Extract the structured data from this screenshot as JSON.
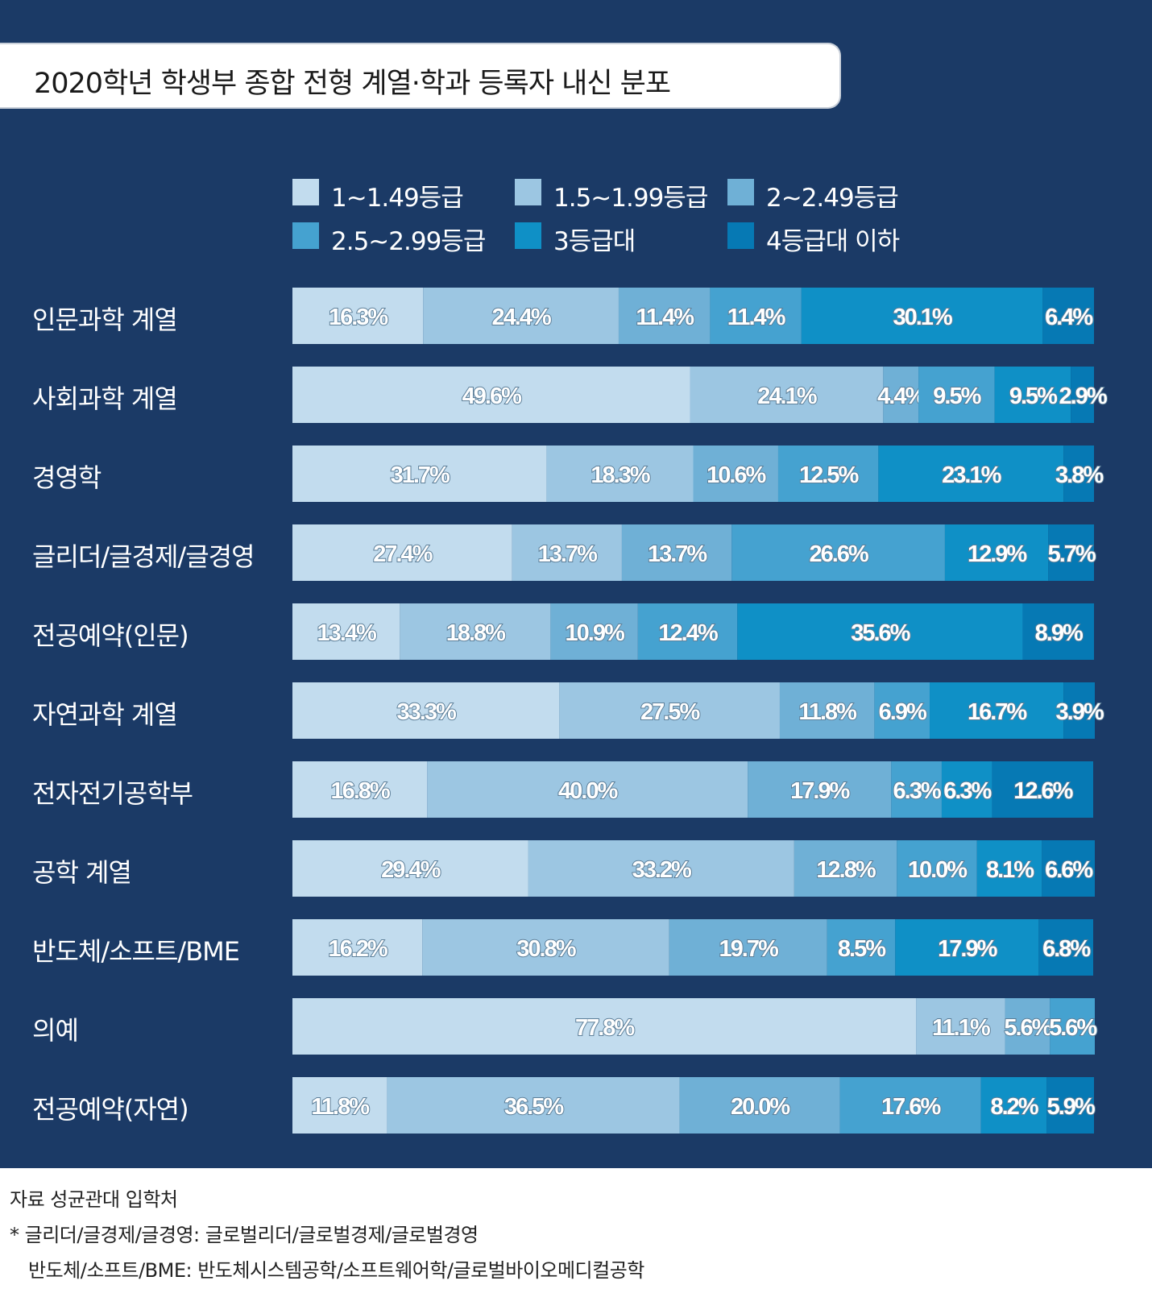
{
  "title": "2020학년 학생부 종합 전형 계열·학과 등록자 내신 분포",
  "colors": {
    "background": "#1b3a66",
    "segments": [
      "#c2dcee",
      "#9cc6e2",
      "#6fb0d6",
      "#45a2d0",
      "#0f90c6",
      "#0679b4"
    ],
    "segment_text": "#ffffff",
    "segment_text_outline": "#5d7f99"
  },
  "legend": [
    {
      "label": "1~1.49등급"
    },
    {
      "label": "1.5~1.99등급"
    },
    {
      "label": "2~2.49등급"
    },
    {
      "label": "2.5~2.99등급"
    },
    {
      "label": "3등급대"
    },
    {
      "label": "4등급대 이하"
    }
  ],
  "chart_data": {
    "type": "bar",
    "orientation": "horizontal",
    "stacked": true,
    "title": "2020학년 학생부 종합 전형 계열·학과 등록자 내신 분포",
    "unit": "%",
    "categories": [
      "인문과학 계열",
      "사회과학 계열",
      "경영학",
      "글리더/글경제/글경영",
      "전공예약(인문)",
      "자연과학 계열",
      "전자전기공학부",
      "공학 계열",
      "반도체/소프트/BME",
      "의예",
      "전공예약(자연)"
    ],
    "series": [
      {
        "name": "1~1.49등급",
        "values": [
          16.3,
          49.6,
          31.7,
          27.4,
          13.4,
          33.3,
          16.8,
          29.4,
          16.2,
          77.8,
          11.8
        ]
      },
      {
        "name": "1.5~1.99등급",
        "values": [
          24.4,
          24.1,
          18.3,
          13.7,
          18.8,
          27.5,
          40.0,
          33.2,
          30.8,
          11.1,
          36.5
        ]
      },
      {
        "name": "2~2.49등급",
        "values": [
          11.4,
          4.4,
          10.6,
          13.7,
          10.9,
          11.8,
          17.9,
          12.8,
          19.7,
          5.6,
          20.0
        ]
      },
      {
        "name": "2.5~2.99등급",
        "values": [
          11.4,
          9.5,
          12.5,
          26.6,
          12.4,
          6.9,
          6.3,
          10.0,
          8.5,
          5.6,
          17.6
        ]
      },
      {
        "name": "3등급대",
        "values": [
          30.1,
          9.5,
          23.1,
          12.9,
          35.6,
          16.7,
          6.3,
          8.1,
          17.9,
          null,
          8.2
        ]
      },
      {
        "name": "4등급대 이하",
        "values": [
          6.4,
          2.9,
          3.8,
          5.7,
          8.9,
          3.9,
          12.6,
          6.6,
          6.8,
          null,
          5.9
        ]
      }
    ],
    "labels": [
      [
        "16.3%",
        "24.4%",
        "11.4%",
        "11.4%",
        "30.1%",
        "6.4%"
      ],
      [
        "49.6%",
        "24.1%",
        "4.4%",
        "9.5%",
        "9.5%",
        "2.9%"
      ],
      [
        "31.7%",
        "18.3%",
        "10.6%",
        "12.5%",
        "23.1%",
        "3.8%"
      ],
      [
        "27.4%",
        "13.7%",
        "13.7%",
        "26.6%",
        "12.9%",
        "5.7%"
      ],
      [
        "13.4%",
        "18.8%",
        "10.9%",
        "12.4%",
        "35.6%",
        "8.9%"
      ],
      [
        "33.3%",
        "27.5%",
        "11.8%",
        "6.9%",
        "16.7%",
        "3.9%"
      ],
      [
        "16.8%",
        "40.0%",
        "17.9%",
        "6.3%",
        "6.3%",
        "12.6%"
      ],
      [
        "29.4%",
        "33.2%",
        "12.8%",
        "10.0%",
        "8.1%",
        "6.6%"
      ],
      [
        "16.2%",
        "30.8%",
        "19.7%",
        "8.5%",
        "17.9%",
        "6.8%"
      ],
      [
        "77.8%",
        "11.1%",
        "5.6%",
        "5.6%",
        "",
        ""
      ],
      [
        "11.8%",
        "36.5%",
        "20.0%",
        "17.6%",
        "8.2%",
        "5.9%"
      ]
    ],
    "xlim": [
      0,
      100
    ],
    "legend_position": "top"
  },
  "footnotes": {
    "source": "자료 성균관대 입학처",
    "note1": " * 글리더/글경제/글경영: 글로벌리더/글로벌경제/글로벌경영",
    "note2": "반도체/소프트/BME: 반도체시스템공학/소프트웨어학/글로벌바이오메디컬공학"
  }
}
